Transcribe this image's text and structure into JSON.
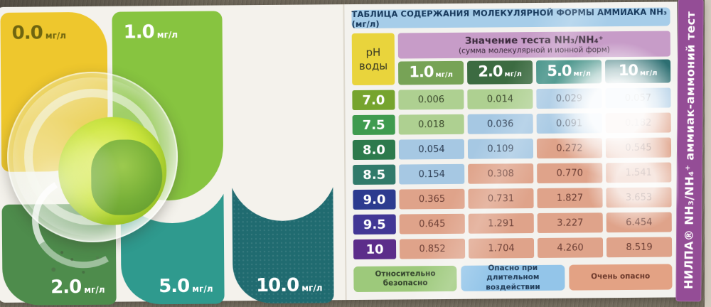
{
  "brand_strip": {
    "label": "НИЛПА®  NH₃/NH₄⁺  аммиак-аммоний тест",
    "bg": "#944d96"
  },
  "color_scale": {
    "patches": [
      {
        "value": "0.0",
        "unit": "мг/л",
        "color": "#eec72d",
        "text_color": "#6f650f"
      },
      {
        "value": "1.0",
        "unit": "мг/л",
        "color": "#87c440",
        "text_color": "#ffffff"
      },
      {
        "value": "2.0",
        "unit": "мг/л",
        "color": "#4e8c4c",
        "text_color": "#ffffff"
      },
      {
        "value": "5.0",
        "unit": "мг/л",
        "color": "#2f9a8e",
        "text_color": "#ffffff"
      },
      {
        "value": "10.0",
        "unit": "мг/л",
        "color": "#206b70",
        "text_color": "#ffffff"
      }
    ],
    "cup": {
      "liquid_color": "#cde63e"
    }
  },
  "table": {
    "title": "ТАБЛИЦА СОДЕРЖАНИЯ МОЛЕКУЛЯРНОЙ ФОРМЫ АММИАКА NH₃ (мг/л)",
    "title_bg": "#a6cde9",
    "ph_header": {
      "line1": "pH",
      "line2": "воды",
      "bg": "#e9d43c"
    },
    "test_header": {
      "title": "Значение теста NH₃/NH₄⁺",
      "subtitle": "(сумма молекулярной и ионной форм)",
      "bg": "#c79cc8"
    },
    "columns": [
      {
        "value": "1.0",
        "unit": "мг/л",
        "bg": "#77a356"
      },
      {
        "value": "2.0",
        "unit": "мг/л",
        "bg": "#3c6b41"
      },
      {
        "value": "5.0",
        "unit": "мг/л",
        "bg": "#35897e"
      },
      {
        "value": "10",
        "unit": "мг/л",
        "bg": "#2d6f72"
      }
    ],
    "levels": {
      "safe": {
        "bg": "#aed091",
        "text": "#3c4a2d"
      },
      "caution": {
        "bg": "#a6c8e3",
        "text": "#2e3f55"
      },
      "danger": {
        "bg": "#dfa38a",
        "text": "#6e4036"
      }
    },
    "rows": [
      {
        "ph": "7.0",
        "ph_bg": "#76a42e",
        "cells": [
          {
            "value": "0.006",
            "level": "safe"
          },
          {
            "value": "0.014",
            "level": "safe"
          },
          {
            "value": "0.029",
            "level": "caution"
          },
          {
            "value": "0.057",
            "level": "caution"
          }
        ]
      },
      {
        "ph": "7.5",
        "ph_bg": "#3f9b4f",
        "cells": [
          {
            "value": "0.018",
            "level": "safe"
          },
          {
            "value": "0.036",
            "level": "caution"
          },
          {
            "value": "0.091",
            "level": "caution"
          },
          {
            "value": "0.182",
            "level": "danger"
          }
        ]
      },
      {
        "ph": "8.0",
        "ph_bg": "#2d7a4c",
        "cells": [
          {
            "value": "0.054",
            "level": "caution"
          },
          {
            "value": "0.109",
            "level": "caution"
          },
          {
            "value": "0.272",
            "level": "danger"
          },
          {
            "value": "0.545",
            "level": "danger"
          }
        ]
      },
      {
        "ph": "8.5",
        "ph_bg": "#317a6a",
        "cells": [
          {
            "value": "0.154",
            "level": "caution"
          },
          {
            "value": "0.308",
            "level": "danger"
          },
          {
            "value": "0.770",
            "level": "danger"
          },
          {
            "value": "1.541",
            "level": "danger"
          }
        ]
      },
      {
        "ph": "9.0",
        "ph_bg": "#2c3b8f",
        "cells": [
          {
            "value": "0.365",
            "level": "danger"
          },
          {
            "value": "0.731",
            "level": "danger"
          },
          {
            "value": "1.827",
            "level": "danger"
          },
          {
            "value": "3.653",
            "level": "danger"
          }
        ]
      },
      {
        "ph": "9.5",
        "ph_bg": "#423795",
        "cells": [
          {
            "value": "0.645",
            "level": "danger"
          },
          {
            "value": "1.291",
            "level": "danger"
          },
          {
            "value": "3.227",
            "level": "danger"
          },
          {
            "value": "6.454",
            "level": "danger"
          }
        ]
      },
      {
        "ph": "10",
        "ph_bg": "#5c2d8a",
        "cells": [
          {
            "value": "0.852",
            "level": "danger"
          },
          {
            "value": "1.704",
            "level": "danger"
          },
          {
            "value": "4.260",
            "level": "danger"
          },
          {
            "value": "8.519",
            "level": "danger"
          }
        ]
      }
    ],
    "legend": [
      {
        "label": "Относительно безопасно",
        "bg": "#9dc97b",
        "text": "#33432c"
      },
      {
        "label": "Опасно при длительном воздействии",
        "bg": "#93c5e9",
        "text": "#24405c"
      },
      {
        "label": "Очень опасно",
        "bg": "#e3a284",
        "text": "#6b382a"
      }
    ]
  }
}
